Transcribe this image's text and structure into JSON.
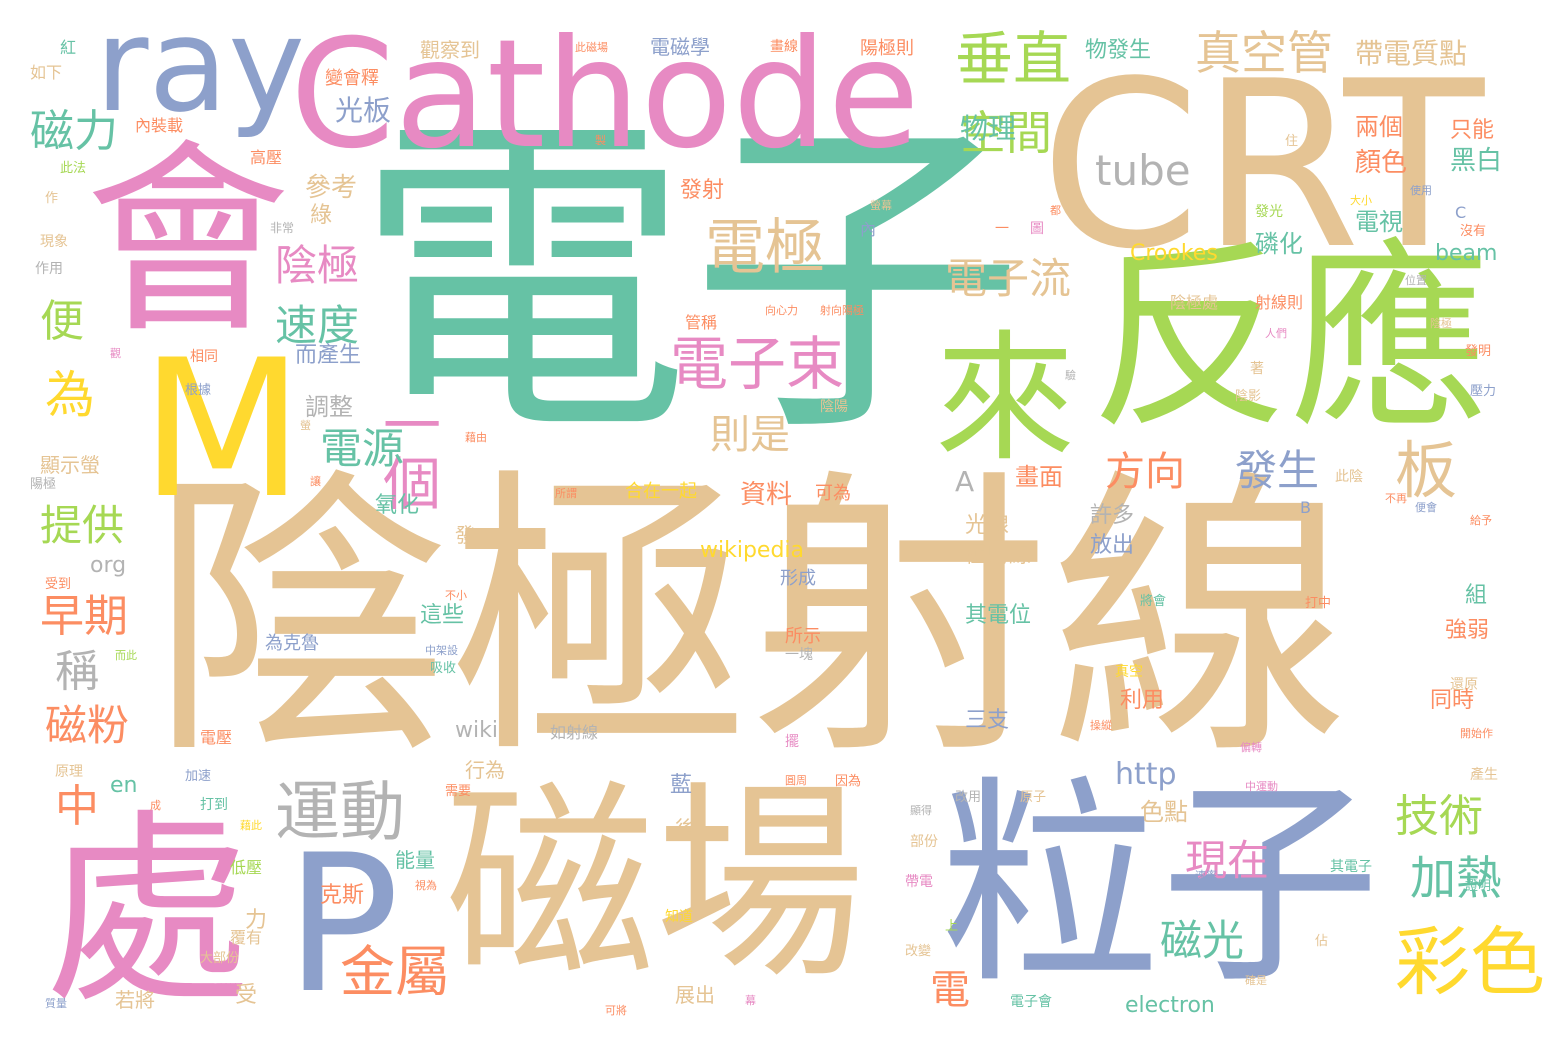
{
  "wordcloud": {
    "title": "陰極射線 word cloud",
    "palette": {
      "green": "#66c2a5",
      "orange": "#fc8d62",
      "blue": "#8da0cb",
      "pink": "#e78ac3",
      "lime": "#a6d854",
      "yellow": "#ffd92f",
      "tan": "#e5c494",
      "grey": "#b3b3b3"
    },
    "words": {
      "w1": "電子",
      "w2": "陰極射線",
      "w3": "磁場",
      "w4": "粒子",
      "w5": "CRT",
      "w6": "反應",
      "w7": "Cathode",
      "w8": "會",
      "w9": "處",
      "w10": "M",
      "w11": "P",
      "w12": "ray",
      "w13": "來",
      "w14": "彩色",
      "w15": "運動",
      "w16": "電子束",
      "w17": "垂直",
      "w18": "真空管",
      "w19": "電極",
      "w20": "金屬",
      "w21": "一個",
      "w22": "板",
      "w23": "tube",
      "w24": "空間",
      "w25": "陰極",
      "w26": "速度",
      "w27": "電子流",
      "w28": "磁力",
      "w29": "技術",
      "w30": "加熱",
      "w31": "現在",
      "w32": "磁光",
      "w33": "為",
      "w34": "早期",
      "w35": "磁粉",
      "w36": "提供",
      "w37": "發生",
      "w38": "方向",
      "w39": "電源",
      "w40": "則是",
      "w41": "便",
      "w42": "中",
      "w43": "稱",
      "w44": "物理",
      "w45": "帶電質點",
      "w46": "光板",
      "w47": "參考",
      "w48": "A",
      "w49": "http",
      "w50": "電",
      "w51": "Crookes",
      "w52": "beam",
      "w53": "wikipedia",
      "w54": "electron",
      "w55": "資料",
      "w56": "畫面",
      "w57": "色點",
      "w58": "顏色",
      "w59": "黑白",
      "w60": "只能",
      "w61": "兩個",
      "w62": "電視",
      "w63": "磷化",
      "w64": "發射",
      "w65": "調整",
      "w66": "而產生",
      "w67": "綠",
      "w68": "許多",
      "w69": "放出",
      "w70": "光線",
      "w71": "極射線",
      "w72": "氧化",
      "w73": "合在一起",
      "w74": "可為",
      "w75": "組",
      "w76": "強弱",
      "w77": "同時",
      "w78": "利用",
      "w79": "這些",
      "w80": "形成",
      "w81": "所示",
      "w82": "其電位",
      "w83": "三支",
      "w84": "行為",
      "w85": "藍",
      "w86": "後",
      "w87": "能量",
      "w88": "克斯",
      "w89": "受",
      "w90": "力",
      "w91": "展出",
      "w92": "若將",
      "w93": "org",
      "w94": "en",
      "w95": "wiki",
      "w96": "如射線",
      "w97": "顯示螢",
      "w98": "電磁學",
      "w99": "物發生",
      "w100": "觀察到",
      "w101": "陽極則",
      "w102": "變會釋",
      "w103": "紅",
      "w104": "如下",
      "w105": "內裝載",
      "w106": "高壓",
      "w107": "非常",
      "w108": "現象",
      "w109": "作用",
      "w110": "此法",
      "w111": "作",
      "w112": "一",
      "w113": "圖",
      "w114": "內",
      "w115": "管稱",
      "w116": "陰極處",
      "w117": "射線則",
      "w118": "C",
      "w119": "發光",
      "w120": "使用",
      "w121": "沒有",
      "w122": "大小",
      "w123": "住",
      "w124": "位置",
      "w125": "向心力",
      "w126": "射向陽極",
      "w127": "人們",
      "w128": "發明",
      "w129": "壓力",
      "w130": "著",
      "w131": "陰影",
      "w132": "此陰",
      "w133": "B",
      "w134": "便會",
      "w135": "不再",
      "w136": "給予",
      "w137": "將會",
      "w138": "打中",
      "w139": "真空",
      "w140": "還原",
      "w141": "開始作",
      "w142": "擺",
      "w143": "操縱",
      "w144": "偏轉",
      "w145": "中運動",
      "w146": "產生",
      "w147": "其電子",
      "w148": "速率",
      "w149": "證明",
      "w150": "佔",
      "w151": "確是",
      "w152": "電子會",
      "w153": "帶電",
      "w154": "改變",
      "w155": "上",
      "w156": "部份",
      "w157": "顯得",
      "w158": "改用",
      "w159": "原子",
      "w160": "圓周",
      "w161": "因為",
      "w162": "知道",
      "w163": "可將",
      "w164": "幕",
      "w165": "需要",
      "w166": "成",
      "w167": "打到",
      "w168": "藉此",
      "w169": "低壓",
      "w170": "視為",
      "w171": "覆有",
      "w172": "大部份",
      "w173": "質量",
      "w174": "加速",
      "w175": "電壓",
      "w176": "原理",
      "w177": "而此",
      "w178": "受到",
      "w179": "不小",
      "w180": "中架設",
      "w181": "吸收",
      "w182": "為克魯",
      "w183": "一塊",
      "w184": "陰陽",
      "w185": "藉由",
      "w186": "所謂",
      "w187": "根據",
      "w188": "相同",
      "w189": "螢",
      "w190": "陽極",
      "w191": "讓",
      "w192": "發",
      "w193": "觀",
      "w194": "製",
      "w195": "此磁場",
      "w196": "畫線",
      "w197": "螢幕",
      "w198": "都",
      "w199": "陰極",
      "w200": "驗"
    }
  }
}
